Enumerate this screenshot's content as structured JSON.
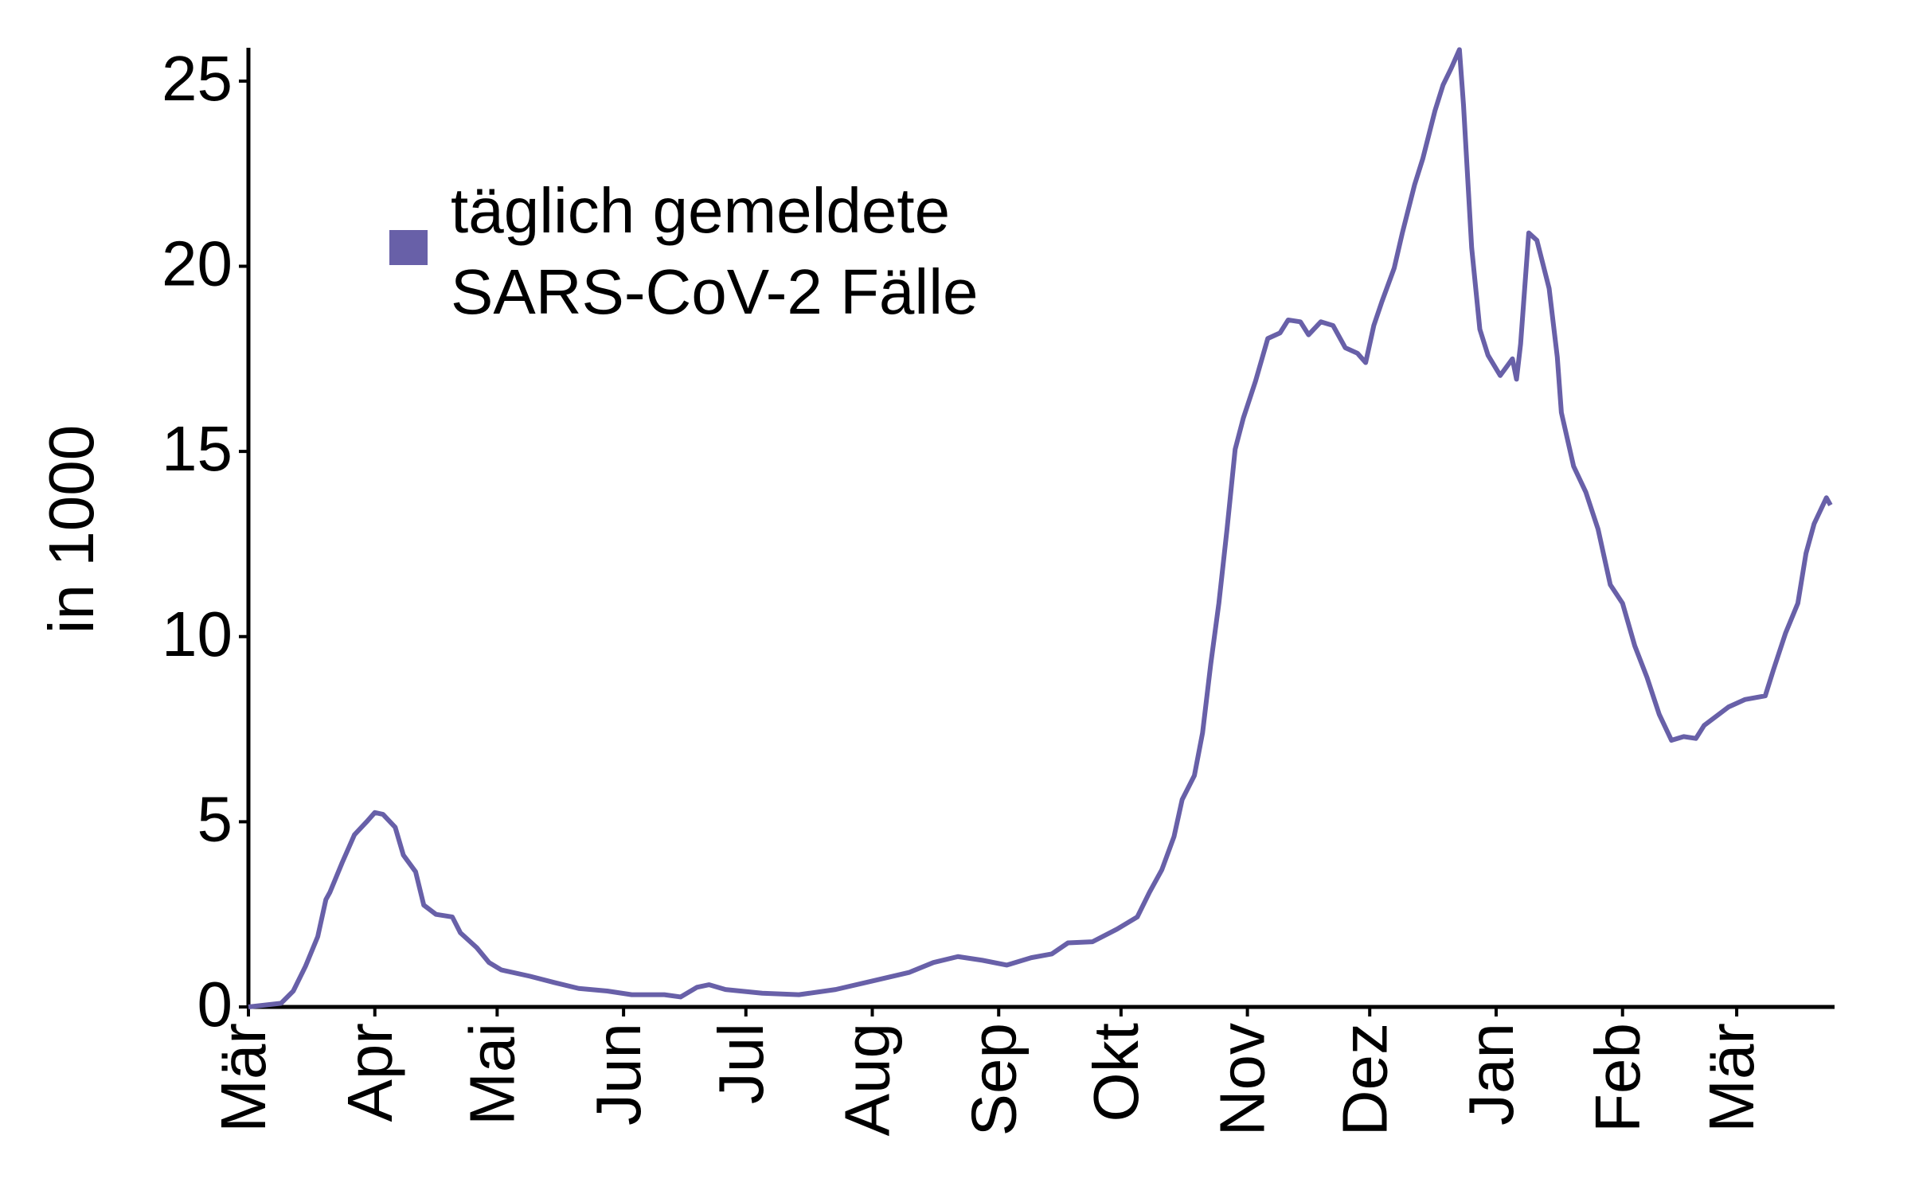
{
  "chart_data": {
    "type": "line",
    "y_label": "in 1000",
    "x": [
      0,
      8,
      11,
      14,
      17,
      19,
      20,
      23,
      26,
      29,
      31,
      33,
      36,
      38,
      41,
      43,
      46,
      50,
      52,
      56,
      59,
      62,
      69,
      75,
      81,
      88,
      94,
      102,
      106,
      110,
      113,
      117,
      126,
      135,
      144,
      153,
      162,
      168,
      174,
      180,
      186,
      192,
      197,
      201,
      207,
      213,
      218,
      221,
      224,
      227,
      229,
      232,
      234,
      236,
      238,
      240,
      242,
      244,
      247,
      250,
      253,
      255,
      258,
      260,
      263,
      266,
      269,
      272,
      274,
      276,
      278,
      281,
      283,
      286,
      288,
      291,
      293,
      295,
      297,
      298,
      300,
      302,
      304,
      307,
      310,
      311,
      312,
      314,
      316,
      319,
      321,
      322,
      325,
      328,
      331,
      334,
      337,
      340,
      343,
      346,
      349,
      352,
      355,
      357,
      360,
      363,
      367,
      372,
      374,
      377,
      380,
      382,
      384,
      387,
      388
    ],
    "series": [
      {
        "name": "täglich gemeldete SARS-CoV-2 Fälle",
        "color": "#6860a8",
        "values": [
          0,
          0.1,
          0.43,
          1.1,
          1.9,
          2.9,
          3.1,
          3.9,
          4.65,
          5.0,
          5.25,
          5.2,
          4.85,
          4.1,
          3.65,
          2.75,
          2.5,
          2.43,
          2.0,
          1.6,
          1.2,
          1.0,
          0.83,
          0.66,
          0.5,
          0.43,
          0.33,
          0.33,
          0.27,
          0.53,
          0.6,
          0.47,
          0.37,
          0.33,
          0.47,
          0.7,
          0.93,
          1.2,
          1.36,
          1.26,
          1.13,
          1.33,
          1.43,
          1.73,
          1.76,
          2.1,
          2.43,
          3.1,
          3.7,
          4.6,
          5.6,
          6.25,
          7.4,
          9.25,
          10.9,
          12.9,
          15.06,
          15.9,
          16.9,
          18.05,
          18.2,
          18.55,
          18.5,
          18.15,
          18.5,
          18.4,
          17.8,
          17.65,
          17.4,
          18.4,
          19.05,
          19.95,
          20.9,
          22.2,
          22.9,
          24.2,
          24.9,
          25.35,
          25.85,
          24.35,
          20.5,
          18.3,
          17.6,
          17.05,
          17.5,
          16.95,
          17.9,
          20.9,
          20.7,
          19.4,
          17.55,
          16.05,
          14.6,
          13.9,
          12.9,
          11.4,
          10.9,
          9.75,
          8.9,
          7.9,
          7.2,
          7.3,
          7.25,
          7.6,
          7.85,
          8.1,
          8.3,
          8.4,
          9.1,
          10.1,
          10.9,
          12.25,
          13.05,
          13.75,
          13.55
        ]
      }
    ],
    "xlim": [
      0,
      389
    ],
    "xticks": [
      {
        "value": 0,
        "label": "Mär"
      },
      {
        "value": 31,
        "label": "Apr"
      },
      {
        "value": 61,
        "label": "Mai"
      },
      {
        "value": 92,
        "label": "Jun"
      },
      {
        "value": 122,
        "label": "Jul"
      },
      {
        "value": 153,
        "label": "Aug"
      },
      {
        "value": 184,
        "label": "Sep"
      },
      {
        "value": 214,
        "label": "Okt"
      },
      {
        "value": 245,
        "label": "Nov"
      },
      {
        "value": 275,
        "label": "Dez"
      },
      {
        "value": 306,
        "label": "Jan"
      },
      {
        "value": 337,
        "label": "Feb"
      },
      {
        "value": 365,
        "label": "Mär"
      }
    ],
    "ylim": [
      0,
      25.9
    ],
    "yticks": [
      0,
      5,
      10,
      15,
      20,
      25
    ],
    "grid": false
  }
}
